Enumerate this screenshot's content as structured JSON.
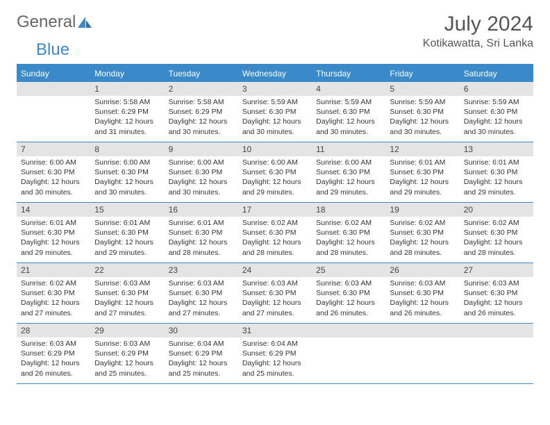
{
  "logo": {
    "text_general": "General",
    "text_blue": "Blue"
  },
  "header": {
    "month_title": "July 2024",
    "location": "Kotikawatta, Sri Lanka"
  },
  "colors": {
    "brand_blue": "#3a8ac9",
    "daynum_bg": "#e4e4e4",
    "text": "#333333",
    "header_text": "#555555",
    "white": "#ffffff"
  },
  "weekdays": [
    "Sunday",
    "Monday",
    "Tuesday",
    "Wednesday",
    "Thursday",
    "Friday",
    "Saturday"
  ],
  "weeks": [
    [
      {
        "n": "",
        "sr": "",
        "ss": "",
        "dl": ""
      },
      {
        "n": "1",
        "sr": "Sunrise: 5:58 AM",
        "ss": "Sunset: 6:29 PM",
        "dl": "Daylight: 12 hours and 31 minutes."
      },
      {
        "n": "2",
        "sr": "Sunrise: 5:58 AM",
        "ss": "Sunset: 6:29 PM",
        "dl": "Daylight: 12 hours and 30 minutes."
      },
      {
        "n": "3",
        "sr": "Sunrise: 5:59 AM",
        "ss": "Sunset: 6:30 PM",
        "dl": "Daylight: 12 hours and 30 minutes."
      },
      {
        "n": "4",
        "sr": "Sunrise: 5:59 AM",
        "ss": "Sunset: 6:30 PM",
        "dl": "Daylight: 12 hours and 30 minutes."
      },
      {
        "n": "5",
        "sr": "Sunrise: 5:59 AM",
        "ss": "Sunset: 6:30 PM",
        "dl": "Daylight: 12 hours and 30 minutes."
      },
      {
        "n": "6",
        "sr": "Sunrise: 5:59 AM",
        "ss": "Sunset: 6:30 PM",
        "dl": "Daylight: 12 hours and 30 minutes."
      }
    ],
    [
      {
        "n": "7",
        "sr": "Sunrise: 6:00 AM",
        "ss": "Sunset: 6:30 PM",
        "dl": "Daylight: 12 hours and 30 minutes."
      },
      {
        "n": "8",
        "sr": "Sunrise: 6:00 AM",
        "ss": "Sunset: 6:30 PM",
        "dl": "Daylight: 12 hours and 30 minutes."
      },
      {
        "n": "9",
        "sr": "Sunrise: 6:00 AM",
        "ss": "Sunset: 6:30 PM",
        "dl": "Daylight: 12 hours and 30 minutes."
      },
      {
        "n": "10",
        "sr": "Sunrise: 6:00 AM",
        "ss": "Sunset: 6:30 PM",
        "dl": "Daylight: 12 hours and 29 minutes."
      },
      {
        "n": "11",
        "sr": "Sunrise: 6:00 AM",
        "ss": "Sunset: 6:30 PM",
        "dl": "Daylight: 12 hours and 29 minutes."
      },
      {
        "n": "12",
        "sr": "Sunrise: 6:01 AM",
        "ss": "Sunset: 6:30 PM",
        "dl": "Daylight: 12 hours and 29 minutes."
      },
      {
        "n": "13",
        "sr": "Sunrise: 6:01 AM",
        "ss": "Sunset: 6:30 PM",
        "dl": "Daylight: 12 hours and 29 minutes."
      }
    ],
    [
      {
        "n": "14",
        "sr": "Sunrise: 6:01 AM",
        "ss": "Sunset: 6:30 PM",
        "dl": "Daylight: 12 hours and 29 minutes."
      },
      {
        "n": "15",
        "sr": "Sunrise: 6:01 AM",
        "ss": "Sunset: 6:30 PM",
        "dl": "Daylight: 12 hours and 29 minutes."
      },
      {
        "n": "16",
        "sr": "Sunrise: 6:01 AM",
        "ss": "Sunset: 6:30 PM",
        "dl": "Daylight: 12 hours and 28 minutes."
      },
      {
        "n": "17",
        "sr": "Sunrise: 6:02 AM",
        "ss": "Sunset: 6:30 PM",
        "dl": "Daylight: 12 hours and 28 minutes."
      },
      {
        "n": "18",
        "sr": "Sunrise: 6:02 AM",
        "ss": "Sunset: 6:30 PM",
        "dl": "Daylight: 12 hours and 28 minutes."
      },
      {
        "n": "19",
        "sr": "Sunrise: 6:02 AM",
        "ss": "Sunset: 6:30 PM",
        "dl": "Daylight: 12 hours and 28 minutes."
      },
      {
        "n": "20",
        "sr": "Sunrise: 6:02 AM",
        "ss": "Sunset: 6:30 PM",
        "dl": "Daylight: 12 hours and 28 minutes."
      }
    ],
    [
      {
        "n": "21",
        "sr": "Sunrise: 6:02 AM",
        "ss": "Sunset: 6:30 PM",
        "dl": "Daylight: 12 hours and 27 minutes."
      },
      {
        "n": "22",
        "sr": "Sunrise: 6:03 AM",
        "ss": "Sunset: 6:30 PM",
        "dl": "Daylight: 12 hours and 27 minutes."
      },
      {
        "n": "23",
        "sr": "Sunrise: 6:03 AM",
        "ss": "Sunset: 6:30 PM",
        "dl": "Daylight: 12 hours and 27 minutes."
      },
      {
        "n": "24",
        "sr": "Sunrise: 6:03 AM",
        "ss": "Sunset: 6:30 PM",
        "dl": "Daylight: 12 hours and 27 minutes."
      },
      {
        "n": "25",
        "sr": "Sunrise: 6:03 AM",
        "ss": "Sunset: 6:30 PM",
        "dl": "Daylight: 12 hours and 26 minutes."
      },
      {
        "n": "26",
        "sr": "Sunrise: 6:03 AM",
        "ss": "Sunset: 6:30 PM",
        "dl": "Daylight: 12 hours and 26 minutes."
      },
      {
        "n": "27",
        "sr": "Sunrise: 6:03 AM",
        "ss": "Sunset: 6:30 PM",
        "dl": "Daylight: 12 hours and 26 minutes."
      }
    ],
    [
      {
        "n": "28",
        "sr": "Sunrise: 6:03 AM",
        "ss": "Sunset: 6:29 PM",
        "dl": "Daylight: 12 hours and 26 minutes."
      },
      {
        "n": "29",
        "sr": "Sunrise: 6:03 AM",
        "ss": "Sunset: 6:29 PM",
        "dl": "Daylight: 12 hours and 25 minutes."
      },
      {
        "n": "30",
        "sr": "Sunrise: 6:04 AM",
        "ss": "Sunset: 6:29 PM",
        "dl": "Daylight: 12 hours and 25 minutes."
      },
      {
        "n": "31",
        "sr": "Sunrise: 6:04 AM",
        "ss": "Sunset: 6:29 PM",
        "dl": "Daylight: 12 hours and 25 minutes."
      },
      {
        "n": "",
        "sr": "",
        "ss": "",
        "dl": ""
      },
      {
        "n": "",
        "sr": "",
        "ss": "",
        "dl": ""
      },
      {
        "n": "",
        "sr": "",
        "ss": "",
        "dl": ""
      }
    ]
  ]
}
